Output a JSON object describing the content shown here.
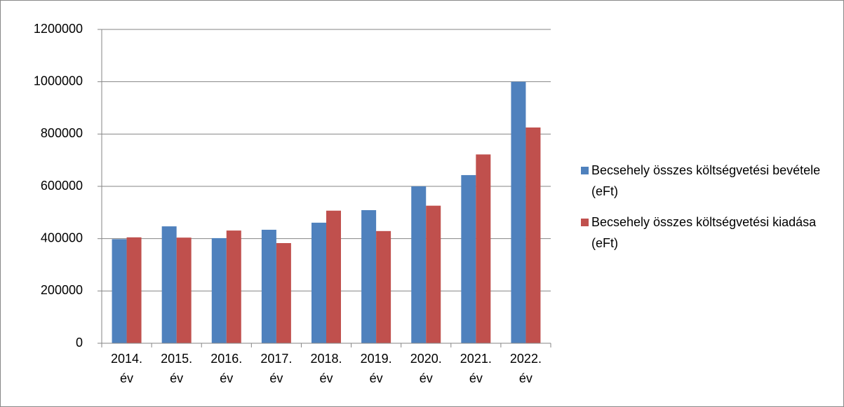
{
  "chart_data": {
    "type": "bar",
    "categories": [
      "2014. év",
      "2015. év",
      "2016. év",
      "2017. év",
      "2018. év",
      "2019. év",
      "2020. év",
      "2021. év",
      "2022. év"
    ],
    "series": [
      {
        "name": "Becsehely összes költségvetési bevétele (eFt)",
        "color": "#4f81bd",
        "values": [
          398000,
          447000,
          402000,
          434000,
          461000,
          509000,
          600000,
          643000,
          1000000
        ]
      },
      {
        "name": "Becsehely összes költségvetési kiadása (eFt)",
        "color": "#c0504d",
        "values": [
          405000,
          404000,
          431000,
          383000,
          507000,
          429000,
          526000,
          722000,
          825000
        ]
      }
    ],
    "ylim": [
      0,
      1200000
    ],
    "yticks": [
      0,
      200000,
      400000,
      600000,
      800000,
      1000000,
      1200000
    ],
    "grid": true,
    "legend": "right"
  }
}
